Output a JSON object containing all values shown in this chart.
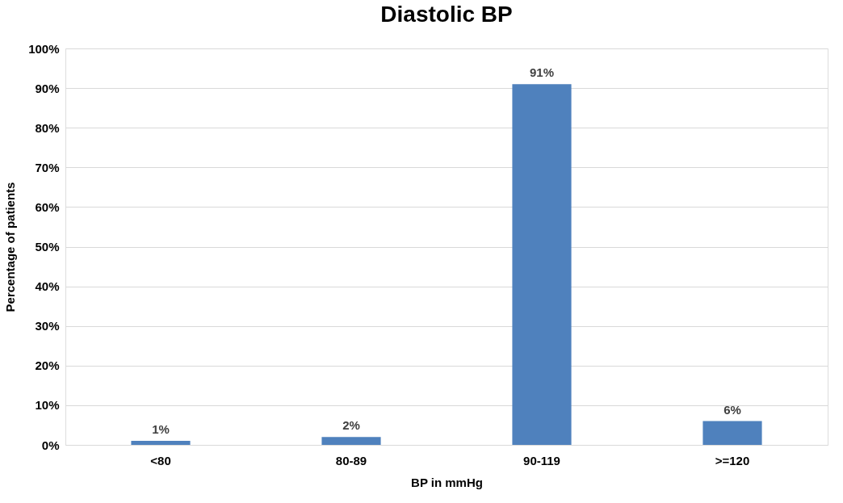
{
  "chart_data": {
    "type": "bar",
    "title": "Diastolic BP",
    "xlabel": "BP in mmHg",
    "ylabel": "Percentage of patients",
    "categories": [
      "<80",
      "80-89",
      "90-119",
      ">=120"
    ],
    "values": [
      1,
      2,
      91,
      6
    ],
    "value_labels": [
      "1%",
      "2%",
      "91%",
      "6%"
    ],
    "color": "#4f81bd",
    "ylim": [
      0,
      100
    ],
    "yticks": [
      {
        "value": 0,
        "label": "0%"
      },
      {
        "value": 10,
        "label": "10%"
      },
      {
        "value": 20,
        "label": "20%"
      },
      {
        "value": 30,
        "label": "30%"
      },
      {
        "value": 40,
        "label": "40%"
      },
      {
        "value": 50,
        "label": "50%"
      },
      {
        "value": 60,
        "label": "60%"
      },
      {
        "value": 70,
        "label": "70%"
      },
      {
        "value": 80,
        "label": "80%"
      },
      {
        "value": 90,
        "label": "90%"
      },
      {
        "value": 100,
        "label": "100%"
      }
    ],
    "grid": "y"
  }
}
